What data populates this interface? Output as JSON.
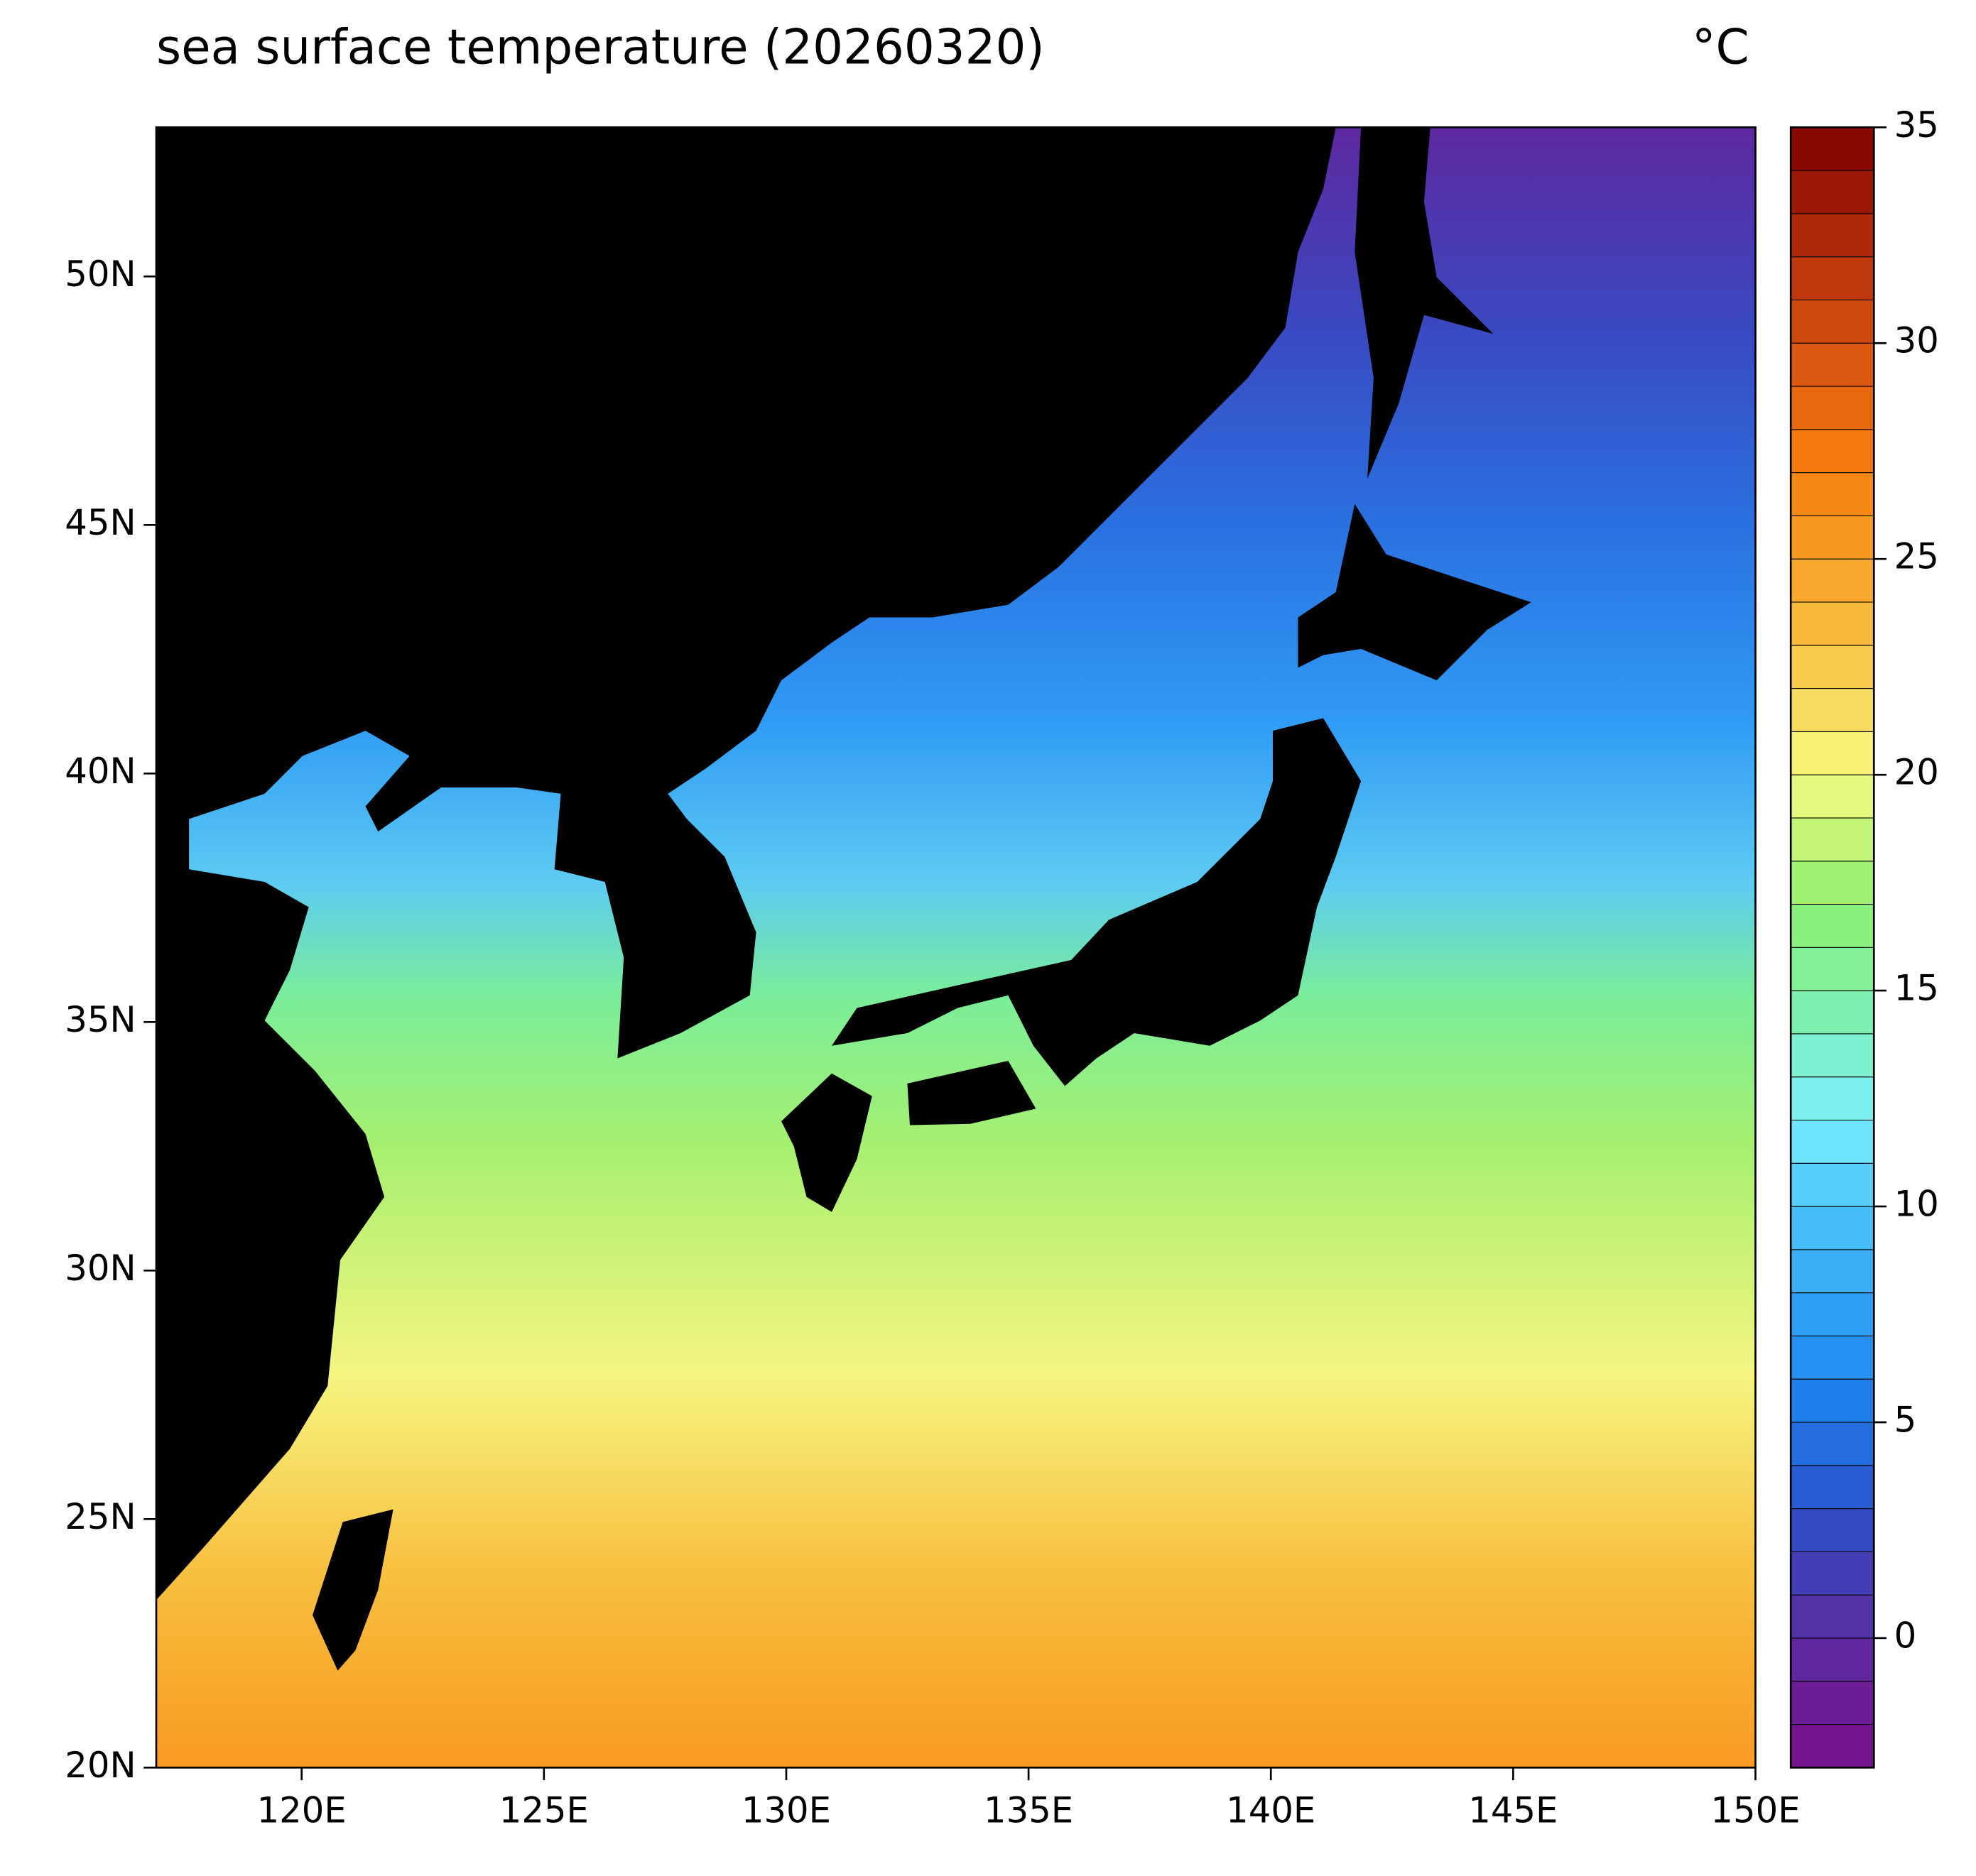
{
  "title": "sea surface temperature (20260320)",
  "unit": "°C",
  "map": {
    "xlim": [
      117,
      150
    ],
    "ylim": [
      20,
      53
    ],
    "xticks": [
      {
        "value": 120,
        "label": "120E"
      },
      {
        "value": 125,
        "label": "125E"
      },
      {
        "value": 130,
        "label": "130E"
      },
      {
        "value": 135,
        "label": "135E"
      },
      {
        "value": 140,
        "label": "140E"
      },
      {
        "value": 145,
        "label": "145E"
      },
      {
        "value": 150,
        "label": "150E"
      }
    ],
    "yticks": [
      {
        "value": 20,
        "label": "20N"
      },
      {
        "value": 25,
        "label": "25N"
      },
      {
        "value": 30,
        "label": "30N"
      },
      {
        "value": 35,
        "label": "35N"
      },
      {
        "value": 40,
        "label": "40N"
      },
      {
        "value": 45,
        "label": "45N"
      },
      {
        "value": 50,
        "label": "50N"
      }
    ]
  },
  "colorbar": {
    "lim": [
      -3,
      35
    ],
    "ticks": [
      0,
      5,
      10,
      15,
      20,
      25,
      30,
      35
    ],
    "colormap": [
      {
        "value": -3,
        "color": "#7b0f8c"
      },
      {
        "value": 0,
        "color": "#5b2aa0"
      },
      {
        "value": 3,
        "color": "#2a52cc"
      },
      {
        "value": 6,
        "color": "#1e88f0"
      },
      {
        "value": 10,
        "color": "#4cc4f8"
      },
      {
        "value": 12,
        "color": "#7af0ff"
      },
      {
        "value": 15,
        "color": "#7ef0a0"
      },
      {
        "value": 17,
        "color": "#8cf070"
      },
      {
        "value": 20,
        "color": "#f8f880"
      },
      {
        "value": 23,
        "color": "#f8c040"
      },
      {
        "value": 27,
        "color": "#f88010"
      },
      {
        "value": 30,
        "color": "#d85010"
      },
      {
        "value": 35,
        "color": "#800000"
      }
    ]
  }
}
